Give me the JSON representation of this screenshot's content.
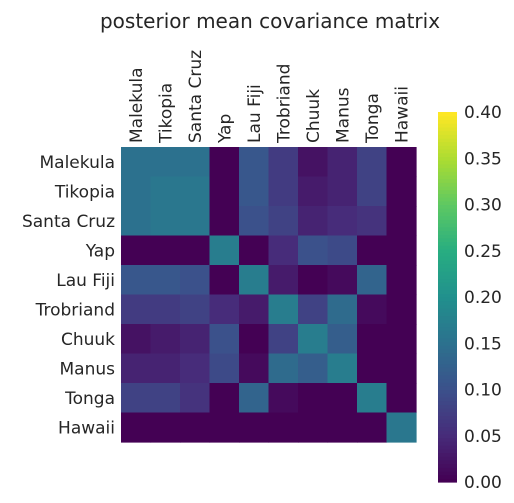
{
  "chart_data": {
    "type": "heatmap",
    "title": "posterior mean covariance matrix",
    "xlabel": "",
    "ylabel": "",
    "labels": [
      "Malekula",
      "Tikopia",
      "Santa Cruz",
      "Yap",
      "Lau Fiji",
      "Trobriand",
      "Chuuk",
      "Manus",
      "Tonga",
      "Hawaii"
    ],
    "values": [
      [
        0.15,
        0.15,
        0.15,
        0.0,
        0.11,
        0.07,
        0.02,
        0.04,
        0.08,
        0.0
      ],
      [
        0.15,
        0.16,
        0.16,
        0.0,
        0.11,
        0.07,
        0.03,
        0.04,
        0.08,
        0.0
      ],
      [
        0.15,
        0.16,
        0.16,
        0.0,
        0.1,
        0.08,
        0.04,
        0.05,
        0.06,
        0.0
      ],
      [
        0.0,
        0.0,
        0.0,
        0.17,
        0.0,
        0.05,
        0.1,
        0.09,
        0.0,
        0.0
      ],
      [
        0.11,
        0.11,
        0.1,
        0.0,
        0.17,
        0.03,
        0.0,
        0.01,
        0.13,
        0.0
      ],
      [
        0.07,
        0.07,
        0.08,
        0.05,
        0.03,
        0.17,
        0.08,
        0.14,
        0.01,
        0.0
      ],
      [
        0.02,
        0.03,
        0.04,
        0.1,
        0.0,
        0.08,
        0.17,
        0.12,
        0.0,
        0.0
      ],
      [
        0.04,
        0.04,
        0.05,
        0.09,
        0.01,
        0.14,
        0.12,
        0.17,
        0.0,
        0.0
      ],
      [
        0.08,
        0.08,
        0.06,
        0.0,
        0.13,
        0.01,
        0.0,
        0.0,
        0.17,
        0.0
      ],
      [
        0.0,
        0.0,
        0.0,
        0.0,
        0.0,
        0.0,
        0.0,
        0.0,
        0.0,
        0.16
      ]
    ],
    "colormap": "viridis",
    "colorbar": {
      "range": [
        0.0,
        0.4
      ],
      "ticks": [
        "0.00",
        "0.05",
        "0.10",
        "0.15",
        "0.20",
        "0.25",
        "0.30",
        "0.35",
        "0.40"
      ]
    },
    "grid": false
  }
}
